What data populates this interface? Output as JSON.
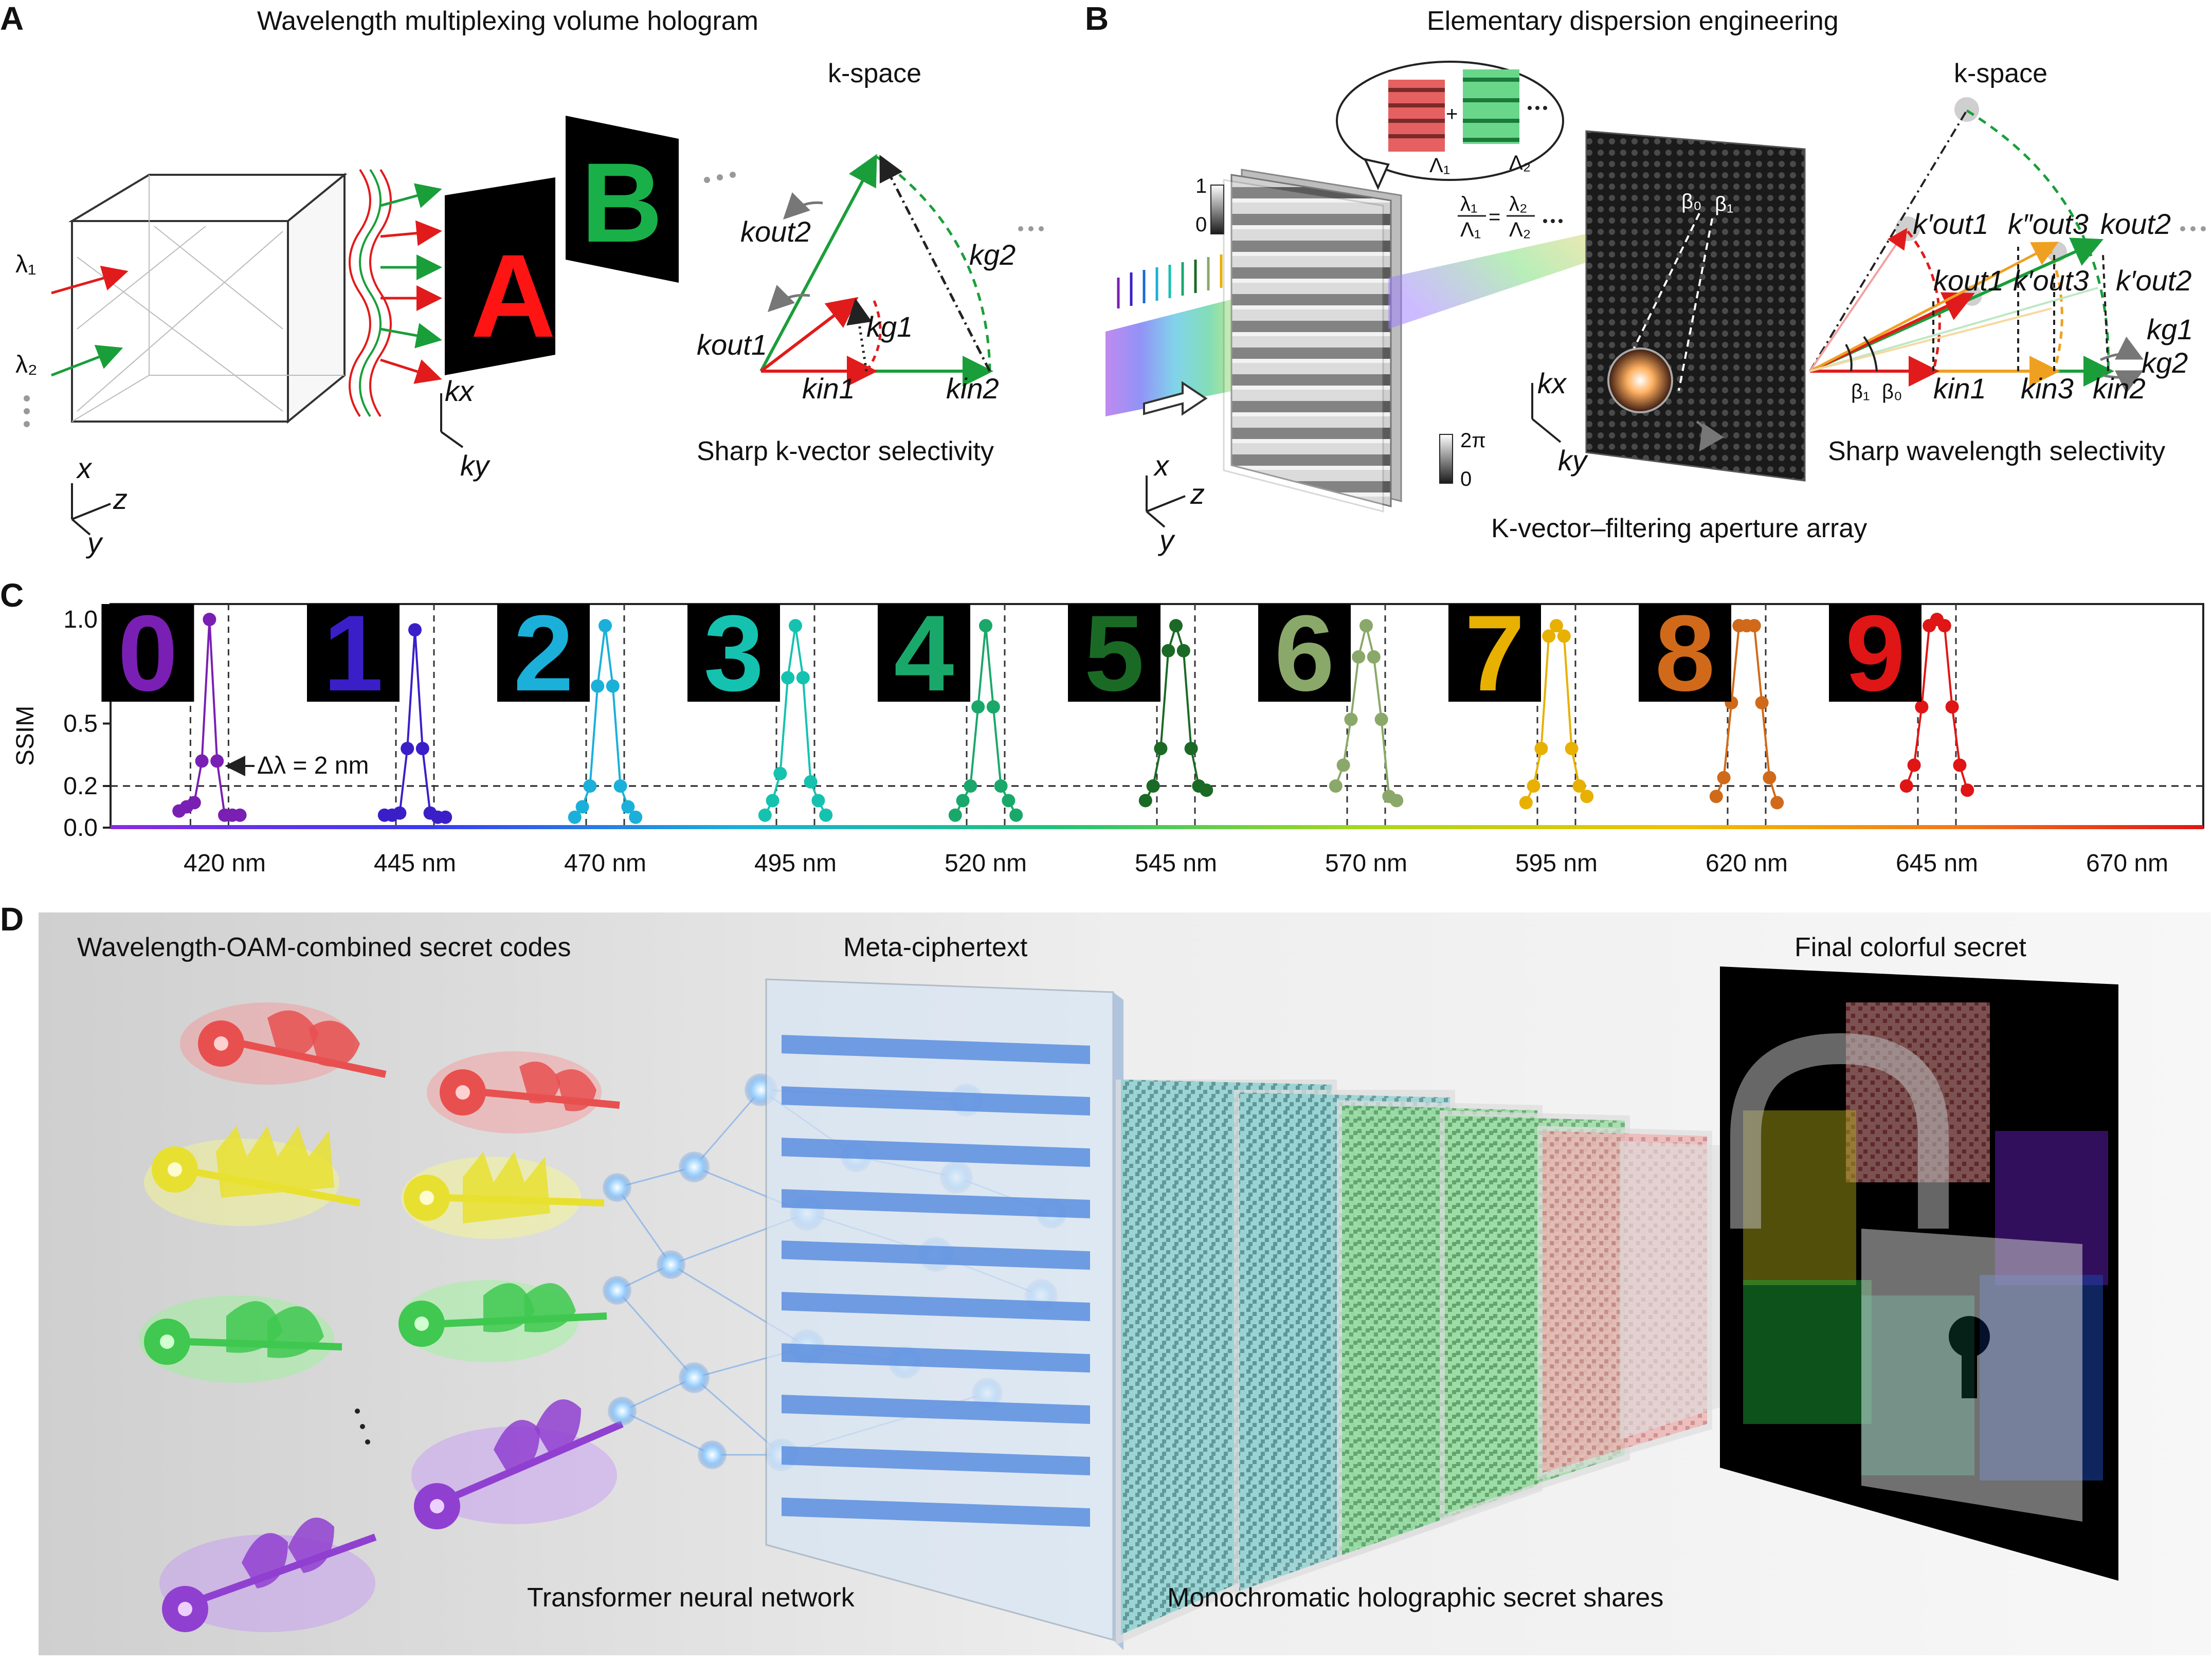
{
  "panels": {
    "A": {
      "letter": "A",
      "title": "Wavelength multiplexing volume hologram",
      "kspace_title": "k-space",
      "caption": "Sharp k-vector selectivity",
      "lambda1": "λ₁",
      "lambda2": "λ₂",
      "image_A": "A",
      "image_B": "B",
      "kx": "kx",
      "ky": "ky",
      "axis_x": "x",
      "axis_y": "y",
      "axis_z": "z",
      "k_out2": "kout2",
      "k_out1": "kout1",
      "k_g1": "kg1",
      "k_g2": "kg2",
      "k_in1": "kin1",
      "k_in2": "kin2"
    },
    "B": {
      "letter": "B",
      "title": "Elementary dispersion engineering",
      "kspace_title": "k-space",
      "caption": "Sharp wavelength selectivity",
      "aperture_caption": "K-vector–filtering aperture array",
      "grating_eq_left_num": "λ₁",
      "grating_eq_left_den": "Λ₁",
      "grating_eq_right_num": "λ₂",
      "grating_eq_right_den": "Λ₂",
      "Lambda1": "Λ₁",
      "Lambda2": "Λ₂",
      "scale_top": "1",
      "scale_bottom": "0",
      "phase_top": "2π",
      "phase_bottom": "0",
      "beta0": "β₀",
      "beta1": "β₁",
      "kx": "kx",
      "ky": "ky",
      "axis_x": "x",
      "axis_y": "y",
      "axis_z": "z",
      "k_prime_out1": "k′out1",
      "k_dprime_out3": "k″out3",
      "k_out2": "kout2",
      "k_out1": "kout1",
      "k_prime_out3": "k′out3",
      "k_prime_out2": "k′out2",
      "k_g1": "kg1",
      "k_g2": "kg2",
      "k_in1": "kin1",
      "k_in3": "kin3",
      "k_in2": "kin2",
      "beta_axis_1": "β₁",
      "beta_axis_0": "β₀"
    },
    "C": {
      "letter": "C",
      "ylabel": "SSIM",
      "annotation": "Δλ = 2 nm",
      "digits": [
        "0",
        "1",
        "2",
        "3",
        "4",
        "5",
        "6",
        "7",
        "8",
        "9"
      ]
    },
    "D": {
      "letter": "D",
      "label_codes": "Wavelength-OAM-combined secret codes",
      "label_cipher": "Meta-ciphertext",
      "label_secret": "Final colorful secret",
      "label_network": "Transformer neural network",
      "label_shares": "Monochromatic holographic secret shares"
    }
  },
  "chart_data": {
    "type": "line",
    "title": "",
    "xlabel": "",
    "ylabel": "SSIM",
    "ylim": [
      0,
      1
    ],
    "yticks": [
      "0.0",
      "0.2",
      "0.5",
      "1.0"
    ],
    "threshold": 0.2,
    "xticks": [
      "420 nm",
      "445 nm",
      "470 nm",
      "495 nm",
      "520 nm",
      "545 nm",
      "570 nm",
      "595 nm",
      "620 nm",
      "645 nm",
      "670 nm"
    ],
    "series": [
      {
        "color": "#7a1fb3",
        "center": 418,
        "x": [
          414,
          415,
          416,
          417,
          418,
          419,
          420,
          421,
          422
        ],
        "values": [
          0.08,
          0.1,
          0.12,
          0.32,
          1.0,
          0.32,
          0.06,
          0.06,
          0.06
        ]
      },
      {
        "color": "#3a1fc9",
        "center": 445,
        "x": [
          441,
          442,
          443,
          444,
          445,
          446,
          447,
          448,
          449
        ],
        "values": [
          0.06,
          0.06,
          0.07,
          0.38,
          0.95,
          0.38,
          0.07,
          0.05,
          0.05
        ]
      },
      {
        "color": "#1ab0d9",
        "center": 470,
        "x": [
          466,
          467,
          468,
          469,
          470,
          471,
          472,
          473,
          474
        ],
        "values": [
          0.05,
          0.1,
          0.2,
          0.68,
          0.97,
          0.68,
          0.2,
          0.1,
          0.05
        ]
      },
      {
        "color": "#15c2b0",
        "center": 495,
        "x": [
          491,
          492,
          493,
          494,
          495,
          496,
          497,
          498,
          499
        ],
        "values": [
          0.06,
          0.13,
          0.26,
          0.72,
          0.97,
          0.72,
          0.22,
          0.13,
          0.06
        ]
      },
      {
        "color": "#1aa86a",
        "center": 520,
        "x": [
          516,
          517,
          518,
          519,
          520,
          521,
          522,
          523,
          524
        ],
        "values": [
          0.06,
          0.13,
          0.2,
          0.58,
          0.97,
          0.58,
          0.2,
          0.13,
          0.06
        ]
      },
      {
        "color": "#1a6a25",
        "center": 545,
        "x": [
          541,
          542,
          543,
          544,
          545,
          546,
          547,
          548,
          549
        ],
        "values": [
          0.13,
          0.2,
          0.38,
          0.85,
          0.97,
          0.85,
          0.38,
          0.2,
          0.18
        ]
      },
      {
        "color": "#8aa86a",
        "center": 570,
        "x": [
          566,
          567,
          568,
          569,
          570,
          571,
          572,
          573,
          574
        ],
        "values": [
          0.2,
          0.3,
          0.52,
          0.82,
          0.97,
          0.82,
          0.52,
          0.15,
          0.13
        ]
      },
      {
        "color": "#e8b000",
        "center": 595,
        "x": [
          591,
          592,
          593,
          594,
          595,
          596,
          597,
          598,
          599
        ],
        "values": [
          0.12,
          0.2,
          0.38,
          0.92,
          0.97,
          0.92,
          0.38,
          0.2,
          0.15
        ]
      },
      {
        "color": "#d06a1a",
        "center": 620,
        "x": [
          616,
          617,
          618,
          619,
          620,
          621,
          622,
          623,
          624
        ],
        "values": [
          0.15,
          0.24,
          0.6,
          0.97,
          0.97,
          0.97,
          0.6,
          0.24,
          0.12
        ]
      },
      {
        "color": "#e01515",
        "center": 645,
        "x": [
          641,
          642,
          643,
          644,
          645,
          646,
          647,
          648,
          649
        ],
        "values": [
          0.2,
          0.3,
          0.58,
          0.97,
          1.0,
          0.97,
          0.58,
          0.3,
          0.18
        ]
      }
    ]
  },
  "colors": {
    "green_vec": "#1a9e3a",
    "red_vec": "#e11b1b",
    "dash_green": "#1a9e3a",
    "letter_A": "#ff1414",
    "letter_B": "#19b04a"
  }
}
